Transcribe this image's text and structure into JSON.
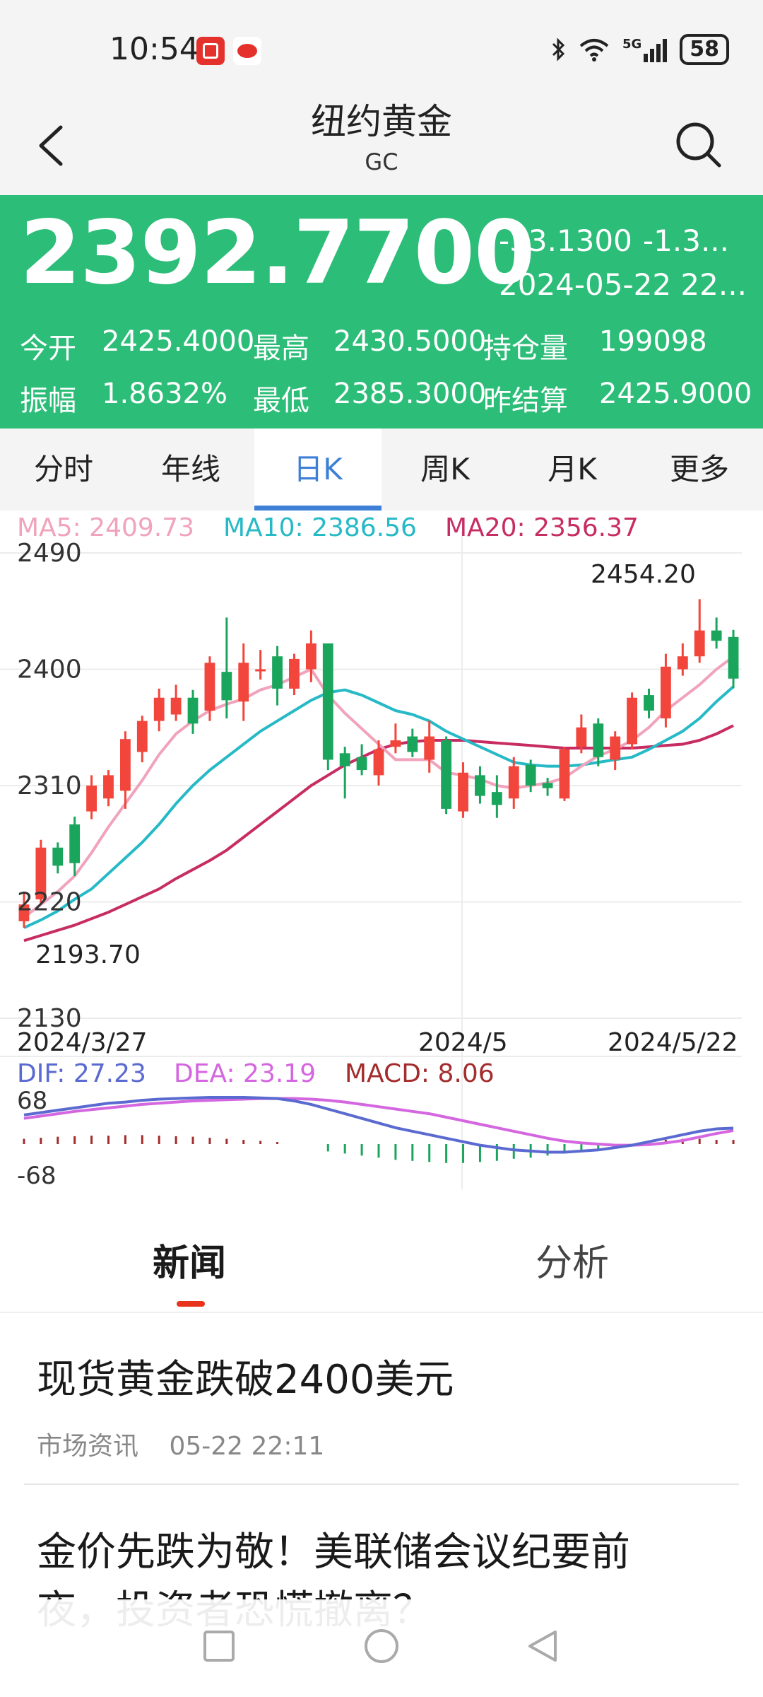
{
  "status_bar": {
    "time": "10:54",
    "app_icons": [
      "app-red-icon",
      "sina-icon"
    ],
    "icons": [
      "bluetooth-icon",
      "wifi-icon",
      "cellular-5g-icon"
    ],
    "network": "5G",
    "battery": "58"
  },
  "header": {
    "title": "纽约黄金",
    "subtitle": "GC"
  },
  "quote": {
    "price": "2392.7700",
    "change": "-33.1300",
    "change_pct": "-1.3...",
    "datetime": "2024-05-22 22...",
    "rows": [
      [
        {
          "label": "今开",
          "value": "2425.4000"
        },
        {
          "label": "最高",
          "value": "2430.5000"
        },
        {
          "label": "持仓量",
          "value": "199098"
        }
      ],
      [
        {
          "label": "振幅",
          "value": "1.8632%"
        },
        {
          "label": "最低",
          "value": "2385.3000"
        },
        {
          "label": "昨结算",
          "value": "2425.9000"
        }
      ]
    ]
  },
  "tabs": [
    "分时",
    "年线",
    "日K",
    "周K",
    "月K",
    "更多"
  ],
  "active_tab": "日K",
  "colors": {
    "up": "#f2453b",
    "down": "#1aa55c",
    "ma5": "#f0a3bb",
    "ma10": "#26b9c6",
    "ma20": "#c72c62",
    "dif": "#5a6ad0",
    "dea": "#d466e0",
    "macd": "#a32c2c",
    "panel": "#2cbd78"
  },
  "ma_legend": [
    {
      "text": "MA5: 2409.73",
      "color": "#f0a3bb"
    },
    {
      "text": "MA10: 2386.56",
      "color": "#26b9c6"
    },
    {
      "text": "MA20: 2356.37",
      "color": "#c72c62"
    }
  ],
  "macd_legend": [
    {
      "text": "DIF: 27.23",
      "color": "#5a6ad0"
    },
    {
      "text": "DEA: 23.19",
      "color": "#d466e0"
    },
    {
      "text": "MACD: 8.06",
      "color": "#a32c2c"
    }
  ],
  "chart_data": {
    "type": "candlestick",
    "ylim": [
      2130,
      2490
    ],
    "yticks": [
      2490,
      2400,
      2310,
      2220,
      2130
    ],
    "xticks": [
      "2024/3/27",
      "2024/5",
      "2024/5/22"
    ],
    "high_label": "2454.20",
    "low_label": "2193.70",
    "candles": [
      [
        2205,
        2218,
        2200,
        2228
      ],
      [
        2222,
        2262,
        2218,
        2268
      ],
      [
        2262,
        2248,
        2242,
        2266
      ],
      [
        2280,
        2250,
        2240,
        2286
      ],
      [
        2290,
        2310,
        2284,
        2318
      ],
      [
        2300,
        2318,
        2294,
        2322
      ],
      [
        2306,
        2346,
        2292,
        2352
      ],
      [
        2336,
        2360,
        2328,
        2364
      ],
      [
        2360,
        2378,
        2352,
        2385
      ],
      [
        2365,
        2378,
        2360,
        2388
      ],
      [
        2378,
        2358,
        2350,
        2384
      ],
      [
        2368,
        2405,
        2360,
        2410
      ],
      [
        2398,
        2376,
        2362,
        2440
      ],
      [
        2375,
        2405,
        2360,
        2420
      ],
      [
        2400,
        2400,
        2392,
        2415
      ],
      [
        2410,
        2385,
        2372,
        2418
      ],
      [
        2385,
        2408,
        2380,
        2412
      ],
      [
        2400,
        2420,
        2390,
        2430
      ],
      [
        2420,
        2330,
        2322,
        2420
      ],
      [
        2335,
        2325,
        2300,
        2340
      ],
      [
        2332,
        2322,
        2318,
        2342
      ],
      [
        2318,
        2338,
        2310,
        2345
      ],
      [
        2340,
        2345,
        2335,
        2358
      ],
      [
        2348,
        2336,
        2332,
        2354
      ],
      [
        2330,
        2348,
        2320,
        2360
      ],
      [
        2345,
        2292,
        2288,
        2348
      ],
      [
        2290,
        2320,
        2285,
        2328
      ],
      [
        2318,
        2302,
        2296,
        2325
      ],
      [
        2305,
        2295,
        2285,
        2318
      ],
      [
        2300,
        2325,
        2292,
        2332
      ],
      [
        2326,
        2310,
        2305,
        2330
      ],
      [
        2312,
        2308,
        2302,
        2316
      ],
      [
        2300,
        2338,
        2298,
        2340
      ],
      [
        2340,
        2355,
        2335,
        2365
      ],
      [
        2358,
        2332,
        2325,
        2362
      ],
      [
        2330,
        2348,
        2322,
        2352
      ],
      [
        2342,
        2378,
        2338,
        2382
      ],
      [
        2380,
        2368,
        2362,
        2385
      ],
      [
        2362,
        2402,
        2355,
        2412
      ],
      [
        2400,
        2410,
        2395,
        2420
      ],
      [
        2410,
        2430,
        2405,
        2454.2
      ],
      [
        2430,
        2422,
        2416,
        2440
      ],
      [
        2425,
        2392.77,
        2385.3,
        2430.5
      ]
    ],
    "ma5": [
      2208,
      2218,
      2228,
      2240,
      2258,
      2278,
      2296,
      2314,
      2334,
      2350,
      2360,
      2368,
      2373,
      2377,
      2384,
      2388,
      2394,
      2400,
      2380,
      2366,
      2354,
      2342,
      2330,
      2330,
      2330,
      2320,
      2318,
      2315,
      2310,
      2308,
      2310,
      2312,
      2316,
      2325,
      2333,
      2338,
      2345,
      2355,
      2368,
      2378,
      2388,
      2400,
      2409.73
    ],
    "ma10": [
      2200,
      2206,
      2213,
      2222,
      2230,
      2242,
      2254,
      2266,
      2280,
      2296,
      2310,
      2322,
      2332,
      2342,
      2352,
      2360,
      2368,
      2376,
      2382,
      2384,
      2380,
      2374,
      2368,
      2365,
      2360,
      2352,
      2346,
      2340,
      2334,
      2328,
      2326,
      2325,
      2325,
      2326,
      2328,
      2330,
      2332,
      2338,
      2345,
      2352,
      2362,
      2375,
      2386.56
    ],
    "ma20": [
      2190,
      2194,
      2198,
      2202,
      2207,
      2212,
      2218,
      2224,
      2230,
      2238,
      2245,
      2252,
      2260,
      2270,
      2280,
      2290,
      2300,
      2310,
      2318,
      2326,
      2332,
      2338,
      2342,
      2344,
      2345,
      2345,
      2345,
      2344,
      2343,
      2342,
      2341,
      2340,
      2339,
      2339,
      2339,
      2339,
      2339,
      2340,
      2341,
      2342,
      2345,
      2350,
      2356.37
    ],
    "macd": {
      "ylim_labels": [
        "68",
        "-68"
      ],
      "dif": [
        50,
        54,
        58,
        62,
        66,
        70,
        72,
        75,
        77,
        78,
        79,
        80,
        80,
        80,
        79,
        78,
        74,
        68,
        60,
        52,
        44,
        36,
        28,
        22,
        16,
        10,
        4,
        -2,
        -6,
        -10,
        -12,
        -14,
        -14,
        -12,
        -10,
        -6,
        -2,
        4,
        10,
        16,
        22,
        26,
        27.23
      ],
      "dea": [
        44,
        48,
        52,
        56,
        59,
        62,
        65,
        68,
        70,
        72,
        74,
        75,
        76,
        77,
        78,
        78,
        78,
        77,
        75,
        72,
        68,
        64,
        60,
        56,
        52,
        46,
        40,
        34,
        28,
        22,
        16,
        10,
        5,
        2,
        0,
        -2,
        -2,
        -1,
        2,
        6,
        12,
        18,
        23.19
      ],
      "hist": [
        10,
        12,
        14,
        15,
        16,
        16,
        17,
        17,
        16,
        15,
        14,
        12,
        10,
        8,
        6,
        4,
        0,
        0,
        -14,
        -18,
        -22,
        -26,
        -30,
        -32,
        -34,
        -36,
        -36,
        -34,
        -32,
        -28,
        -26,
        -22,
        -18,
        -14,
        -10,
        -6,
        0,
        0,
        8,
        10,
        10,
        8,
        8.06
      ]
    }
  },
  "news_tabs": [
    "新闻",
    "分析"
  ],
  "active_news_tab": "新闻",
  "news": [
    {
      "title": "现货黄金跌破2400美元",
      "source": "市场资讯",
      "time": "05-22 22:11"
    },
    {
      "title": "金价先跌为敬！美联储会议纪要前",
      "title2": "夜，投资者恐慌撤离？"
    }
  ],
  "bottom_nav": [
    "recent-apps-icon",
    "home-icon",
    "back-nav-icon"
  ]
}
